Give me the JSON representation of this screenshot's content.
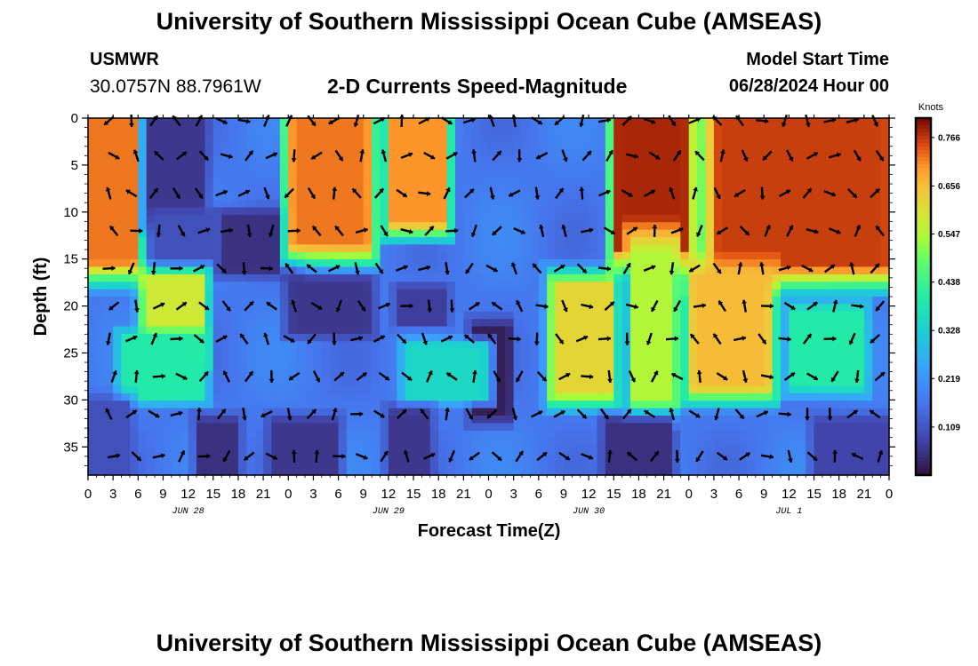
{
  "header": {
    "title": "University of Southern Mississippi Ocean Cube (AMSEAS)",
    "station_id": "USMWR",
    "station_coords": "30.0757N  88.7961W",
    "subtitle": "2-D Currents Speed-Magnitude",
    "model_start_label": "Model Start Time",
    "model_start_value": "06/28/2024 Hour 00"
  },
  "footer": {
    "title": "University of Southern Mississippi Ocean Cube (AMSEAS)"
  },
  "chart_data": {
    "type": "heatmap",
    "title": "2-D Currents Speed-Magnitude",
    "xlabel": "Forecast Time(Z)",
    "ylabel": "Depth (ft)",
    "x_ticks": [
      "0",
      "3",
      "6",
      "9",
      "12",
      "15",
      "18",
      "21",
      "0",
      "3",
      "6",
      "9",
      "12",
      "15",
      "18",
      "21",
      "0",
      "3",
      "6",
      "9",
      "12",
      "15",
      "18",
      "21",
      "0",
      "3",
      "6",
      "9",
      "12",
      "15",
      "18",
      "21",
      "0"
    ],
    "x_range_hours": [
      0,
      96
    ],
    "day_labels": [
      {
        "label": "JUN 28",
        "hour": 12
      },
      {
        "label": "JUN 29",
        "hour": 36
      },
      {
        "label": "JUN 30",
        "hour": 60
      },
      {
        "label": "JUL 1",
        "hour": 84
      }
    ],
    "y_ticks": [
      "0",
      "5",
      "10",
      "15",
      "20",
      "25",
      "30",
      "35"
    ],
    "y_range_ft": [
      0,
      38
    ],
    "colorbar": {
      "unit": "Knots",
      "ticks": [
        "0.766",
        "0.656",
        "0.547",
        "0.438",
        "0.328",
        "0.219",
        "0.109"
      ],
      "range": [
        0,
        0.81
      ]
    },
    "arrow_depths_ft": [
      0,
      4,
      8,
      12,
      16,
      20,
      23.5,
      27.5,
      31.5,
      36
    ],
    "speed_regions": [
      {
        "t0": 0,
        "t1": 5,
        "d0": 0,
        "d1": 15.5,
        "v": 0.72
      },
      {
        "t0": 8,
        "t1": 13,
        "d0": 0,
        "d1": 10,
        "v": 0.06
      },
      {
        "t0": 9,
        "t1": 14,
        "d0": 11,
        "d1": 15,
        "v": 0.1
      },
      {
        "t0": 17,
        "t1": 24,
        "d0": 11,
        "d1": 15.5,
        "v": 0.05
      },
      {
        "t0": 25,
        "t1": 33,
        "d0": 0,
        "d1": 13.5,
        "v": 0.72
      },
      {
        "t0": 37,
        "t1": 42,
        "d0": 0,
        "d1": 11,
        "v": 0.7
      },
      {
        "t0": 7.5,
        "t1": 13,
        "d0": 17.5,
        "d1": 25,
        "v": 0.58
      },
      {
        "t0": 5,
        "t1": 13,
        "d0": 24,
        "d1": 29,
        "v": 0.4
      },
      {
        "t0": 25,
        "t1": 33,
        "d0": 18,
        "d1": 22,
        "v": 0.06
      },
      {
        "t0": 38,
        "t1": 42,
        "d0": 19,
        "d1": 21,
        "v": 0.07
      },
      {
        "t0": 47,
        "t1": 49.5,
        "d0": 23,
        "d1": 31,
        "v": 0.02
      },
      {
        "t0": 56.5,
        "t1": 62,
        "d0": 18,
        "d1": 29,
        "v": 0.62
      },
      {
        "t0": 64,
        "t1": 71,
        "d0": 0,
        "d1": 14,
        "v": 0.78
      },
      {
        "t0": 66,
        "t1": 69.5,
        "d0": 14,
        "d1": 30,
        "v": 0.55
      },
      {
        "t0": 75,
        "t1": 96,
        "d0": 0,
        "d1": 16,
        "v": 0.76
      },
      {
        "t0": 73,
        "t1": 81,
        "d0": 17,
        "d1": 28.5,
        "v": 0.66
      },
      {
        "t0": 85,
        "t1": 92,
        "d0": 21,
        "d1": 28,
        "v": 0.4
      },
      {
        "t0": 39,
        "t1": 47,
        "d0": 25,
        "d1": 29,
        "v": 0.35
      },
      {
        "t0": 14,
        "t1": 17,
        "d0": 33,
        "d1": 38,
        "v": 0.05
      },
      {
        "t0": 37,
        "t1": 40,
        "d0": 32,
        "d1": 38,
        "v": 0.06
      },
      {
        "t0": 63,
        "t1": 69,
        "d0": 33,
        "d1": 38,
        "v": 0.05
      },
      {
        "t0": 88,
        "t1": 95,
        "d0": 33,
        "d1": 38,
        "v": 0.08
      },
      {
        "t0": 0,
        "t1": 4,
        "d0": 31,
        "d1": 38,
        "v": 0.1
      },
      {
        "t0": 23,
        "t1": 29,
        "d0": 33,
        "d1": 38,
        "v": 0.06
      }
    ],
    "background_speed": 0.17
  }
}
